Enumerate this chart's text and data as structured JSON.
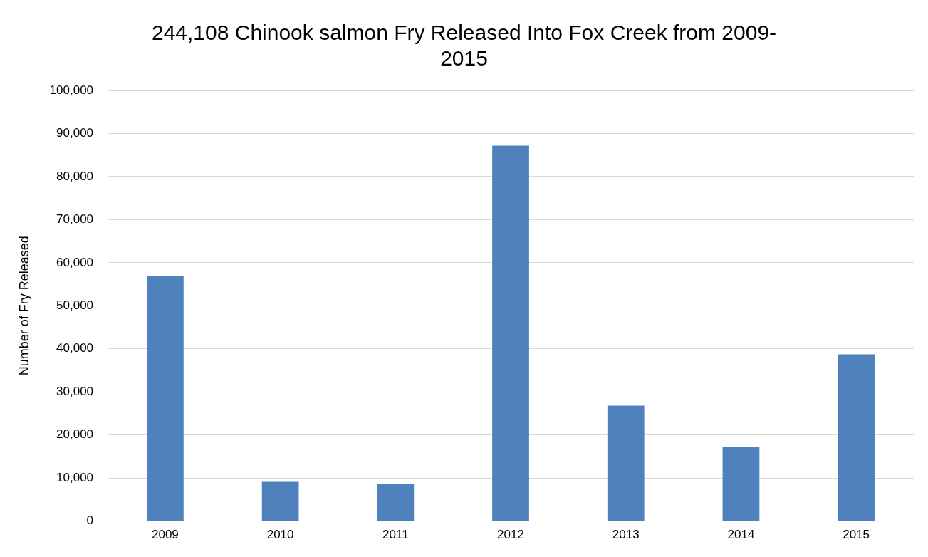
{
  "chart_data": {
    "type": "bar",
    "title": "244,108 Chinook salmon Fry Released Into Fox Creek from 2009-2015",
    "ylabel": "Number of Fry Released",
    "categories": [
      "2009",
      "2010",
      "2011",
      "2012",
      "2013",
      "2014",
      "2015"
    ],
    "values": [
      57000,
      9100,
      8700,
      87200,
      26800,
      17200,
      38700
    ],
    "color": "#4f81bd",
    "ylim": [
      0,
      100000
    ],
    "yticks": [
      0,
      {
        "value": 10000,
        "label": "10,000"
      },
      {
        "value": 20000,
        "label": "20,000"
      },
      {
        "value": 30000,
        "label": "30,000"
      },
      {
        "value": 40000,
        "label": "40,000"
      },
      {
        "value": 50000,
        "label": "50,000"
      },
      {
        "value": 60000,
        "label": "60,000"
      },
      {
        "value": 70000,
        "label": "70,000"
      },
      {
        "value": 80000,
        "label": "80,000"
      },
      {
        "value": 90000,
        "label": "90,000"
      },
      {
        "value": 100000,
        "label": "100,000"
      }
    ],
    "grid": "y",
    "legend": false
  }
}
